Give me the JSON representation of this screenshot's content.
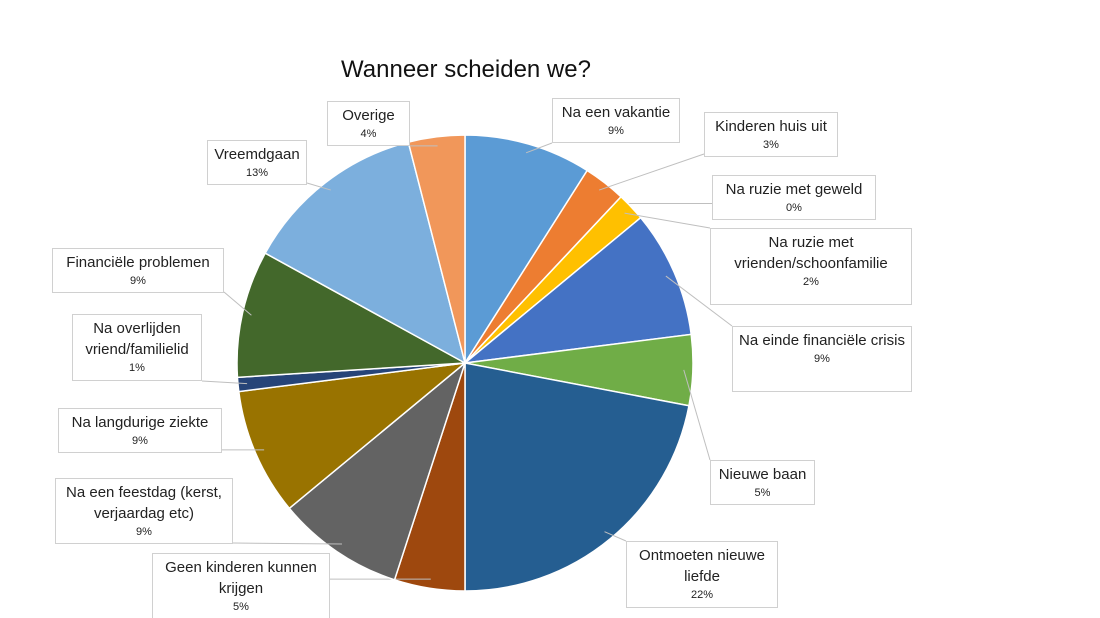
{
  "chart_data": {
    "type": "pie",
    "title": "Wanneer scheiden we?",
    "categories": [
      "Na een vakantie",
      "Kinderen huis uit",
      "Na ruzie met geweld",
      "Na ruzie met vrienden/schoonfamilie",
      "Na einde financiële crisis",
      "Nieuwe baan",
      "Ontmoeten nieuwe liefde",
      "Geen kinderen kunnen krijgen",
      "Na een feestdag (kerst, verjaardag etc)",
      "Na langdurige ziekte",
      "Na overlijden vriend/familielid",
      "Financiële problemen",
      "Vreemdgaan",
      "Overige"
    ],
    "values": [
      9,
      3,
      0,
      2,
      9,
      5,
      22,
      5,
      9,
      9,
      1,
      9,
      13,
      4
    ],
    "value_labels": [
      "9%",
      "3%",
      "0%",
      "2%",
      "9%",
      "5%",
      "22%",
      "5%",
      "9%",
      "9%",
      "1%",
      "9%",
      "13%",
      "4%"
    ],
    "colors": [
      "#5b9bd5",
      "#ed7d31",
      "#a5a5a5",
      "#ffc000",
      "#4472c4",
      "#70ad47",
      "#255e91",
      "#9e480e",
      "#636363",
      "#997300",
      "#264478",
      "#43682b",
      "#7cafdd",
      "#f1975a"
    ]
  }
}
